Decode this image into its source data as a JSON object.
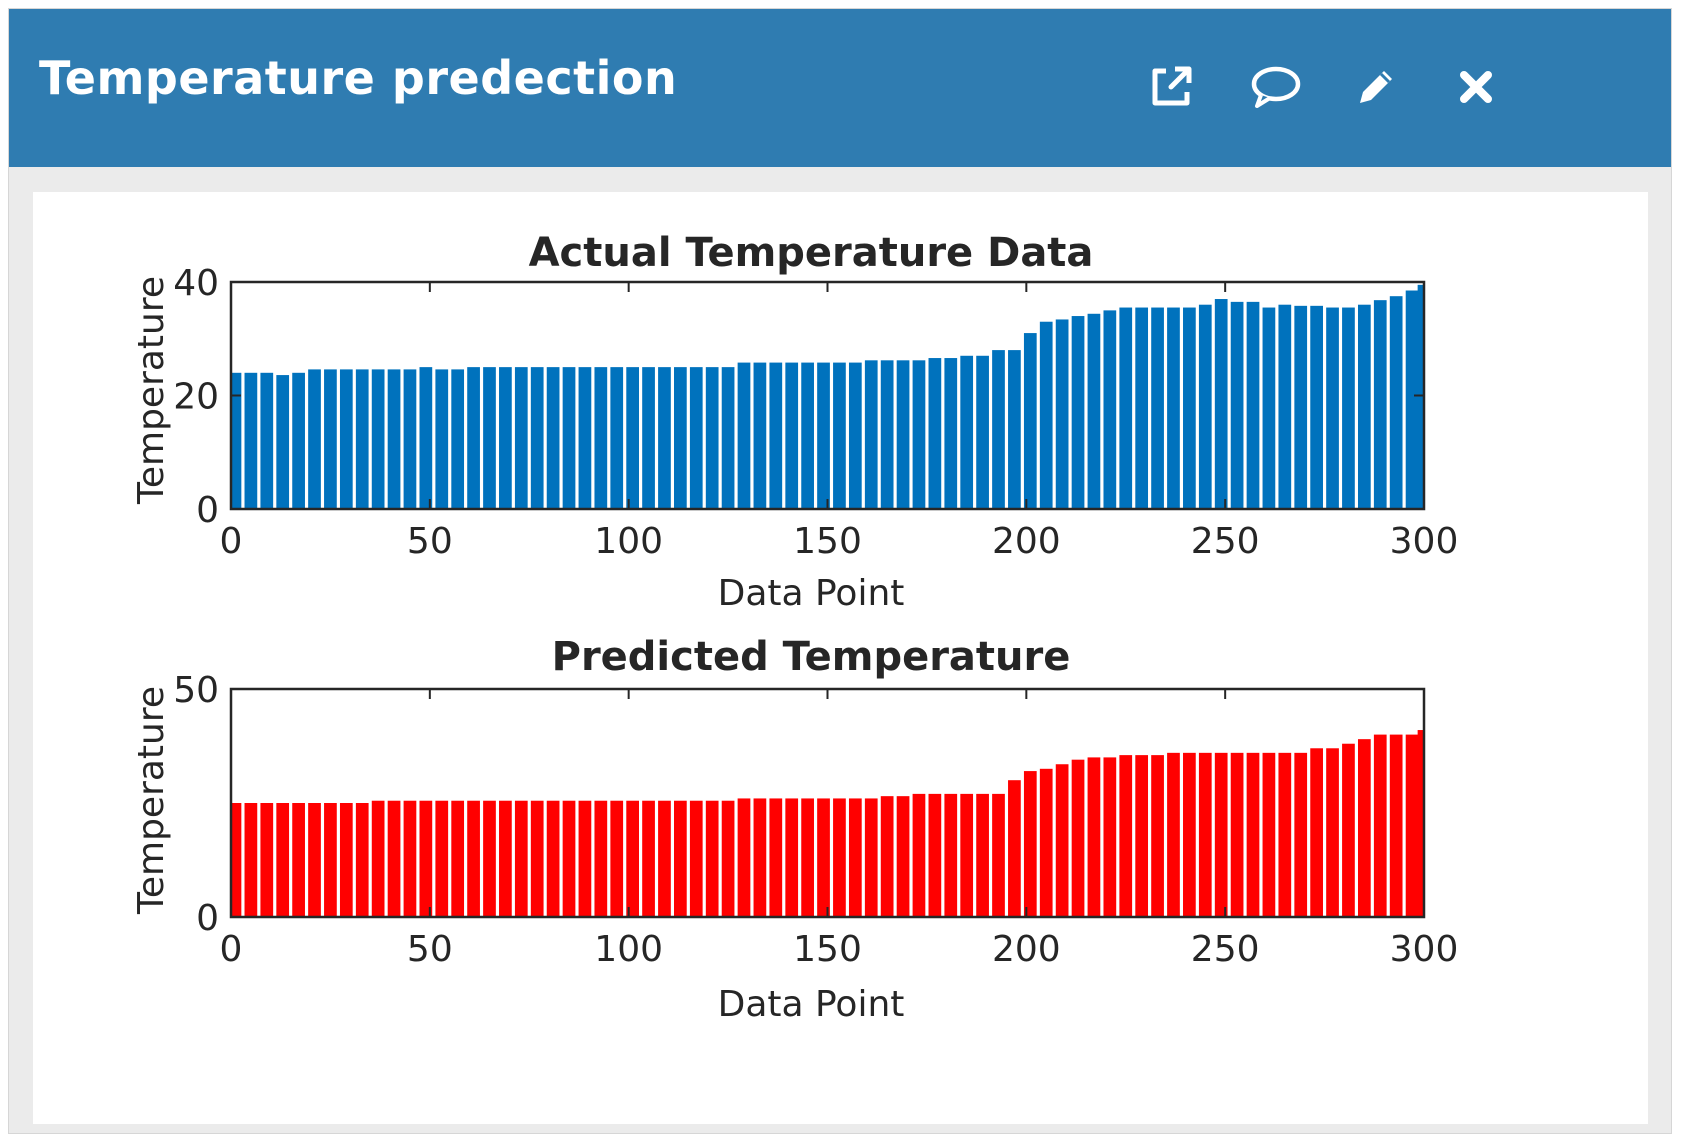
{
  "window": {
    "title": "Temperature predection",
    "accent_color": "#2f7cb1",
    "icons": [
      "external-link-icon",
      "comment-icon",
      "pencil-icon",
      "close-icon"
    ]
  },
  "chart_data": [
    {
      "type": "bar",
      "title": "Actual Temperature Data",
      "xlabel": "Data Point",
      "ylabel": "Temperature",
      "xlim": [
        0,
        300
      ],
      "ylim": [
        0,
        40
      ],
      "xticks": [
        "0",
        "50",
        "100",
        "150",
        "200",
        "250",
        "300"
      ],
      "yticks": [
        "0",
        "20",
        "40"
      ],
      "color": "#0072bd",
      "grid": false,
      "series": [
        {
          "x": [
            1,
            5,
            9,
            13,
            17,
            21,
            25,
            29,
            33,
            37,
            41,
            45,
            49,
            53,
            57,
            61,
            65,
            69,
            73,
            77,
            81,
            85,
            89,
            93,
            97,
            101,
            105,
            109,
            113,
            117,
            121,
            125,
            129,
            133,
            137,
            141,
            145,
            149,
            153,
            157,
            161,
            165,
            169,
            173,
            177,
            181,
            185,
            189,
            193,
            197,
            201,
            205,
            209,
            213,
            217,
            221,
            225,
            229,
            233,
            237,
            241,
            245,
            249,
            253,
            257,
            261,
            265,
            269,
            273,
            277,
            281,
            285,
            289,
            293,
            297,
            300
          ],
          "values": [
            24,
            24,
            24,
            23.6,
            24,
            24.6,
            24.6,
            24.6,
            24.6,
            24.6,
            24.6,
            24.6,
            25,
            24.6,
            24.6,
            25,
            25,
            25,
            25,
            25,
            25,
            25,
            25,
            25,
            25,
            25,
            25,
            25,
            25,
            25,
            25,
            25,
            25.8,
            25.8,
            25.8,
            25.8,
            25.8,
            25.8,
            25.8,
            25.8,
            26.2,
            26.2,
            26.2,
            26.2,
            26.6,
            26.6,
            27,
            27,
            28,
            28,
            31,
            33,
            33.4,
            34,
            34.4,
            35,
            35.5,
            35.5,
            35.5,
            35.5,
            35.5,
            36,
            37,
            36.5,
            36.5,
            35.5,
            36,
            35.8,
            35.8,
            35.5,
            35.5,
            36,
            36.8,
            37.5,
            38.5,
            39.5
          ]
        }
      ]
    },
    {
      "type": "bar",
      "title": "Predicted Temperature",
      "xlabel": "Data Point",
      "ylabel": "Temperature",
      "xlim": [
        0,
        300
      ],
      "ylim": [
        0,
        50
      ],
      "xticks": [
        "0",
        "50",
        "100",
        "150",
        "200",
        "250",
        "300"
      ],
      "yticks": [
        "0",
        "50"
      ],
      "color": "#ff0000",
      "grid": false,
      "series": [
        {
          "x": [
            1,
            5,
            9,
            13,
            17,
            21,
            25,
            29,
            33,
            37,
            41,
            45,
            49,
            53,
            57,
            61,
            65,
            69,
            73,
            77,
            81,
            85,
            89,
            93,
            97,
            101,
            105,
            109,
            113,
            117,
            121,
            125,
            129,
            133,
            137,
            141,
            145,
            149,
            153,
            157,
            161,
            165,
            169,
            173,
            177,
            181,
            185,
            189,
            193,
            197,
            201,
            205,
            209,
            213,
            217,
            221,
            225,
            229,
            233,
            237,
            241,
            245,
            249,
            253,
            257,
            261,
            265,
            269,
            273,
            277,
            281,
            285,
            289,
            293,
            297,
            300
          ],
          "values": [
            25,
            25,
            25,
            25,
            25,
            25,
            25,
            25,
            25,
            25.5,
            25.5,
            25.5,
            25.5,
            25.5,
            25.5,
            25.5,
            25.5,
            25.5,
            25.5,
            25.5,
            25.5,
            25.5,
            25.5,
            25.5,
            25.5,
            25.5,
            25.5,
            25.5,
            25.5,
            25.5,
            25.5,
            25.5,
            26,
            26,
            26,
            26,
            26,
            26,
            26,
            26,
            26,
            26.5,
            26.5,
            27,
            27,
            27,
            27,
            27,
            27,
            30,
            32,
            32.5,
            33.5,
            34.5,
            35,
            35,
            35.5,
            35.5,
            35.5,
            36,
            36,
            36,
            36,
            36,
            36,
            36,
            36,
            36,
            37,
            37,
            38,
            39,
            40,
            40,
            40,
            41
          ]
        }
      ]
    }
  ]
}
